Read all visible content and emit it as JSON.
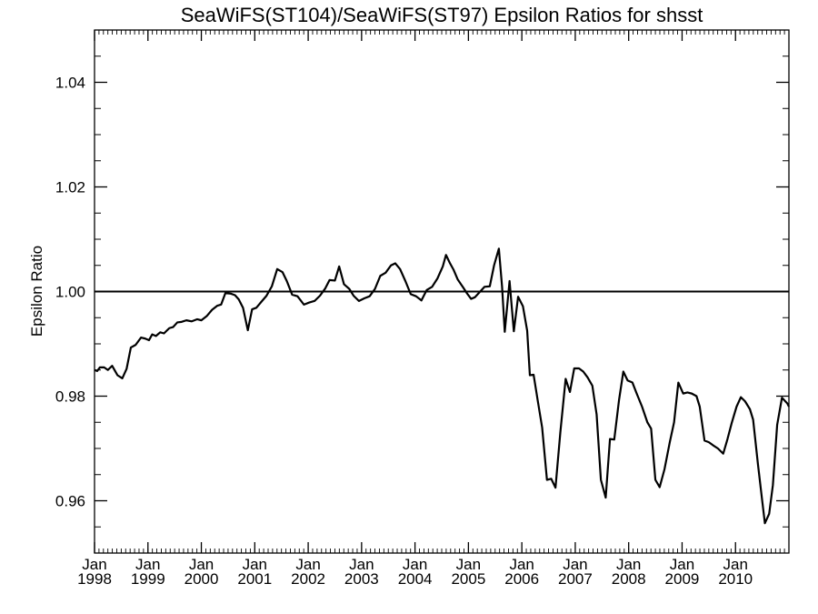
{
  "chart_data": {
    "type": "line",
    "title": "SeaWiFS(ST104)/SeaWiFS(ST97)  Epsilon Ratios for shsst",
    "xlabel": "",
    "ylabel": "Epsilon Ratio",
    "ylim": [
      0.95,
      1.05
    ],
    "xlim": [
      1998.0,
      2011.0
    ],
    "y_ticks": [
      0.96,
      0.98,
      1.0,
      1.02,
      1.04
    ],
    "y_tick_labels": [
      "0.96",
      "0.98",
      "1.00",
      "1.02",
      "1.04"
    ],
    "x_ticks": [
      {
        "value": 1998,
        "month": "Jan",
        "year": "1998"
      },
      {
        "value": 1999,
        "month": "Jan",
        "year": "1999"
      },
      {
        "value": 2000,
        "month": "Jan",
        "year": "2000"
      },
      {
        "value": 2001,
        "month": "Jan",
        "year": "2001"
      },
      {
        "value": 2002,
        "month": "Jan",
        "year": "2002"
      },
      {
        "value": 2003,
        "month": "Jan",
        "year": "2003"
      },
      {
        "value": 2004,
        "month": "Jan",
        "year": "2004"
      },
      {
        "value": 2005,
        "month": "Jan",
        "year": "2005"
      },
      {
        "value": 2006,
        "month": "Jan",
        "year": "2006"
      },
      {
        "value": 2007,
        "month": "Jan",
        "year": "2007"
      },
      {
        "value": 2008,
        "month": "Jan",
        "year": "2008"
      },
      {
        "value": 2009,
        "month": "Jan",
        "year": "2009"
      },
      {
        "value": 2010,
        "month": "Jan",
        "year": "2010"
      }
    ],
    "reference_line": 1.0,
    "grid": false,
    "series": [
      {
        "values": [
          [
            1998.0,
            0.985
          ],
          [
            1998.05,
            0.9848
          ],
          [
            1998.1,
            0.9855
          ],
          [
            1998.18,
            0.9855
          ],
          [
            1998.25,
            0.985
          ],
          [
            1998.33,
            0.9858
          ],
          [
            1998.43,
            0.984
          ],
          [
            1998.52,
            0.9834
          ],
          [
            1998.6,
            0.9852
          ],
          [
            1998.68,
            0.9893
          ],
          [
            1998.77,
            0.9898
          ],
          [
            1998.87,
            0.9912
          ],
          [
            1998.95,
            0.991
          ],
          [
            1999.02,
            0.9907
          ],
          [
            1999.08,
            0.9918
          ],
          [
            1999.15,
            0.9915
          ],
          [
            1999.23,
            0.9922
          ],
          [
            1999.3,
            0.992
          ],
          [
            1999.4,
            0.993
          ],
          [
            1999.47,
            0.9932
          ],
          [
            1999.55,
            0.9941
          ],
          [
            1999.63,
            0.9942
          ],
          [
            1999.72,
            0.9945
          ],
          [
            1999.82,
            0.9943
          ],
          [
            1999.92,
            0.9947
          ],
          [
            2000.0,
            0.9945
          ],
          [
            2000.1,
            0.9953
          ],
          [
            2000.2,
            0.9965
          ],
          [
            2000.3,
            0.9973
          ],
          [
            2000.37,
            0.9975
          ],
          [
            2000.45,
            0.9997
          ],
          [
            2000.55,
            0.9996
          ],
          [
            2000.63,
            0.9993
          ],
          [
            2000.7,
            0.9985
          ],
          [
            2000.78,
            0.9969
          ],
          [
            2000.87,
            0.9926
          ],
          [
            2000.95,
            0.9966
          ],
          [
            2001.03,
            0.9969
          ],
          [
            2001.12,
            0.998
          ],
          [
            2001.22,
            0.9992
          ],
          [
            2001.32,
            1.001
          ],
          [
            2001.42,
            1.0043
          ],
          [
            2001.52,
            1.0037
          ],
          [
            2001.6,
            1.002
          ],
          [
            2001.7,
            0.9994
          ],
          [
            2001.8,
            0.9991
          ],
          [
            2001.92,
            0.9975
          ],
          [
            2002.02,
            0.9979
          ],
          [
            2002.12,
            0.9982
          ],
          [
            2002.22,
            0.9992
          ],
          [
            2002.32,
            1.0006
          ],
          [
            2002.4,
            1.0022
          ],
          [
            2002.5,
            1.0021
          ],
          [
            2002.58,
            1.0048
          ],
          [
            2002.67,
            1.0014
          ],
          [
            2002.77,
            1.0005
          ],
          [
            2002.85,
            0.9992
          ],
          [
            2002.95,
            0.9982
          ],
          [
            2003.05,
            0.9987
          ],
          [
            2003.15,
            0.9991
          ],
          [
            2003.25,
            1.0005
          ],
          [
            2003.35,
            1.003
          ],
          [
            2003.45,
            1.0036
          ],
          [
            2003.55,
            1.005
          ],
          [
            2003.63,
            1.0054
          ],
          [
            2003.72,
            1.0043
          ],
          [
            2003.82,
            1.002
          ],
          [
            2003.92,
            0.9995
          ],
          [
            2004.02,
            0.9991
          ],
          [
            2004.12,
            0.9983
          ],
          [
            2004.22,
            1.0003
          ],
          [
            2004.32,
            1.0009
          ],
          [
            2004.42,
            1.0025
          ],
          [
            2004.52,
            1.0048
          ],
          [
            2004.58,
            1.007
          ],
          [
            2004.65,
            1.0055
          ],
          [
            2004.72,
            1.0042
          ],
          [
            2004.8,
            1.0023
          ],
          [
            2004.9,
            1.0008
          ],
          [
            2004.97,
            0.9997
          ],
          [
            2005.05,
            0.9986
          ],
          [
            2005.12,
            0.9989
          ],
          [
            2005.22,
            1.0
          ],
          [
            2005.3,
            1.0009
          ],
          [
            2005.4,
            1.001
          ],
          [
            2005.48,
            1.005
          ],
          [
            2005.57,
            1.0082
          ],
          [
            2005.63,
            1.0009
          ],
          [
            2005.68,
            0.9923
          ],
          [
            2005.77,
            1.002
          ],
          [
            2005.85,
            0.9924
          ],
          [
            2005.93,
            0.999
          ],
          [
            2006.02,
            0.9972
          ],
          [
            2006.1,
            0.9925
          ],
          [
            2006.15,
            0.984
          ],
          [
            2006.22,
            0.9841
          ],
          [
            2006.3,
            0.979
          ],
          [
            2006.38,
            0.974
          ],
          [
            2006.47,
            0.964
          ],
          [
            2006.55,
            0.9642
          ],
          [
            2006.63,
            0.9625
          ],
          [
            2006.72,
            0.973
          ],
          [
            2006.82,
            0.9833
          ],
          [
            2006.9,
            0.9808
          ],
          [
            2006.98,
            0.9853
          ],
          [
            2007.07,
            0.9853
          ],
          [
            2007.15,
            0.9847
          ],
          [
            2007.23,
            0.9836
          ],
          [
            2007.32,
            0.982
          ],
          [
            2007.4,
            0.9765
          ],
          [
            2007.48,
            0.964
          ],
          [
            2007.57,
            0.9606
          ],
          [
            2007.65,
            0.9718
          ],
          [
            2007.73,
            0.9717
          ],
          [
            2007.82,
            0.9793
          ],
          [
            2007.9,
            0.9847
          ],
          [
            2007.98,
            0.983
          ],
          [
            2008.07,
            0.9826
          ],
          [
            2008.15,
            0.9805
          ],
          [
            2008.25,
            0.978
          ],
          [
            2008.35,
            0.975
          ],
          [
            2008.42,
            0.9738
          ],
          [
            2008.5,
            0.964
          ],
          [
            2008.58,
            0.9626
          ],
          [
            2008.67,
            0.966
          ],
          [
            2008.77,
            0.9712
          ],
          [
            2008.85,
            0.975
          ],
          [
            2008.93,
            0.9826
          ],
          [
            2009.02,
            0.9805
          ],
          [
            2009.1,
            0.9807
          ],
          [
            2009.18,
            0.9805
          ],
          [
            2009.27,
            0.98
          ],
          [
            2009.33,
            0.978
          ],
          [
            2009.42,
            0.9715
          ],
          [
            2009.5,
            0.9712
          ],
          [
            2009.58,
            0.9706
          ],
          [
            2009.67,
            0.97
          ],
          [
            2009.77,
            0.969
          ],
          [
            2009.85,
            0.9718
          ],
          [
            2009.93,
            0.9749
          ],
          [
            2010.02,
            0.978
          ],
          [
            2010.1,
            0.9798
          ],
          [
            2010.18,
            0.979
          ],
          [
            2010.27,
            0.9775
          ],
          [
            2010.33,
            0.9755
          ],
          [
            2010.42,
            0.967
          ],
          [
            2010.5,
            0.96
          ],
          [
            2010.55,
            0.9557
          ],
          [
            2010.63,
            0.9575
          ],
          [
            2010.7,
            0.963
          ],
          [
            2010.78,
            0.9745
          ],
          [
            2010.87,
            0.9797
          ],
          [
            2010.97,
            0.9786
          ],
          [
            2011.0,
            0.978
          ]
        ]
      }
    ]
  }
}
